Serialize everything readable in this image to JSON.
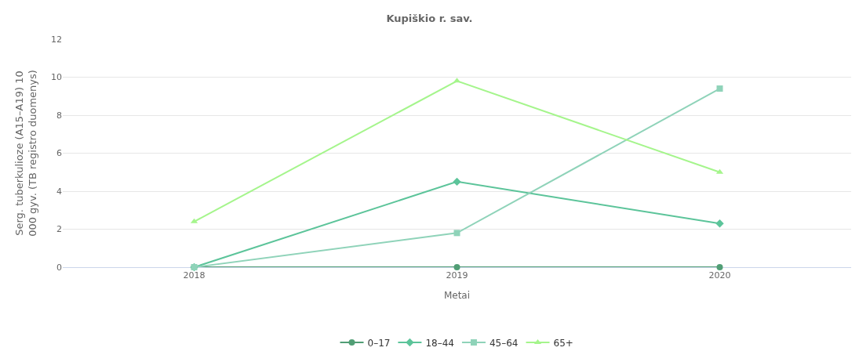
{
  "chart_data": {
    "type": "line",
    "title": "Kupiškio r. sav.",
    "xlabel": "Metai",
    "ylabel": "Serg. tuberkulioze (A15–A19) 10 000 gyv. (TB registro duomenys)",
    "categories": [
      "2018",
      "2019",
      "2020"
    ],
    "series": [
      {
        "name": "0–17",
        "color": "#519e75",
        "marker": "circle",
        "values": [
          0,
          0,
          0
        ]
      },
      {
        "name": "18–44",
        "color": "#5cc49a",
        "marker": "diamond",
        "values": [
          0,
          4.5,
          2.3
        ]
      },
      {
        "name": "45–64",
        "color": "#8fd3b9",
        "marker": "square",
        "values": [
          0,
          1.8,
          9.4
        ]
      },
      {
        "name": "65+",
        "color": "#a5f58c",
        "marker": "triangle",
        "values": [
          2.4,
          9.8,
          5.0
        ]
      }
    ],
    "ylim": [
      0,
      12
    ],
    "yticks": [
      0,
      2,
      4,
      6,
      8,
      10,
      12
    ],
    "grid": "y",
    "legend": "bottom"
  }
}
